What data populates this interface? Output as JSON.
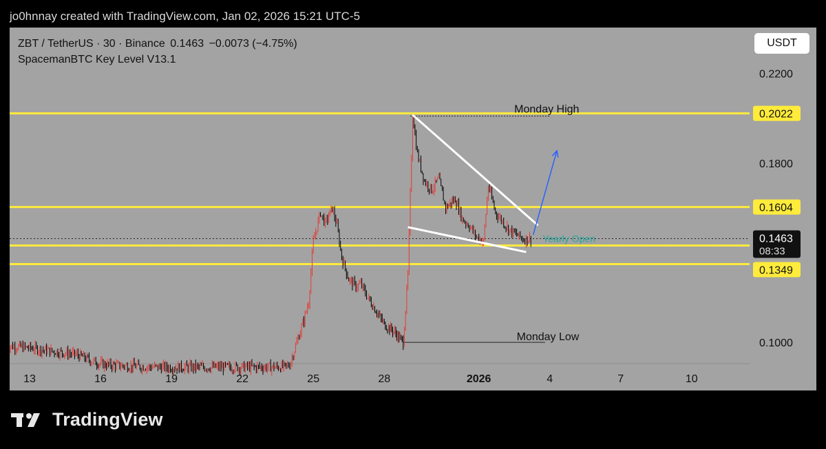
{
  "watermark": {
    "text": "jo0hnnay created with TradingView.com, Jan 02, 2026 15:21 UTC-5"
  },
  "header": {
    "symbol": "ZBT / TetherUS · 30 · Binance",
    "price": "0.1463",
    "change": "−0.0073 (−4.75%)",
    "indicator": "SpacemanBTC Key Level V13.1"
  },
  "currency_button": "USDT",
  "brand": {
    "name": "TradingView",
    "icon": "tradingview-logo-icon"
  },
  "colors": {
    "background": "#a3a3a3",
    "key_level": "#ffeb3b",
    "candle_down": "#000000",
    "candle_up": "#e53935",
    "arrow": "#2962ff",
    "trend_line": "#ffffff",
    "yearly_open_text": "#26a69a"
  },
  "chart_data": {
    "type": "candlestick",
    "ylim": [
      0.0905,
      0.2405
    ],
    "y_ticks": [
      0.22,
      0.18,
      0.1
    ],
    "x_ticks": [
      {
        "label": "13",
        "day": 13
      },
      {
        "label": "16",
        "day": 16
      },
      {
        "label": "19",
        "day": 19
      },
      {
        "label": "22",
        "day": 22
      },
      {
        "label": "25",
        "day": 25
      },
      {
        "label": "28",
        "day": 28
      },
      {
        "label": "2026",
        "day": 32,
        "bold": true
      },
      {
        "label": "4",
        "day": 35
      },
      {
        "label": "7",
        "day": 38
      },
      {
        "label": "10",
        "day": 41
      }
    ],
    "key_levels": [
      {
        "value": 0.2022,
        "label": "0.2022"
      },
      {
        "value": 0.1604,
        "label": "0.1604"
      },
      {
        "value": 0.1432,
        "label": "0.1432"
      },
      {
        "value": 0.1349,
        "label": "0.1349"
      }
    ],
    "last_price": {
      "value": 0.1463,
      "label": "0.1463",
      "countdown": "08:33"
    },
    "annotations": [
      {
        "text": "Monday High",
        "value": 0.2022
      },
      {
        "text": "Monday Low",
        "value": 0.1
      },
      {
        "text": "Yearly Open",
        "value": 0.1463
      }
    ],
    "price_path": [
      [
        12.0,
        0.0985
      ],
      [
        13.0,
        0.0975
      ],
      [
        14.0,
        0.096
      ],
      [
        15.0,
        0.0945
      ],
      [
        15.8,
        0.091
      ],
      [
        16.2,
        0.09
      ],
      [
        17.0,
        0.0895
      ],
      [
        18.0,
        0.089
      ],
      [
        19.0,
        0.0888
      ],
      [
        23.8,
        0.089
      ],
      [
        24.0,
        0.09
      ],
      [
        24.3,
        0.1
      ],
      [
        24.6,
        0.11
      ],
      [
        24.8,
        0.118
      ],
      [
        25.0,
        0.145
      ],
      [
        25.3,
        0.158
      ],
      [
        25.5,
        0.153
      ],
      [
        25.8,
        0.16
      ],
      [
        26.0,
        0.152
      ],
      [
        26.2,
        0.138
      ],
      [
        26.5,
        0.128
      ],
      [
        26.8,
        0.125
      ],
      [
        27.0,
        0.126
      ],
      [
        27.3,
        0.12
      ],
      [
        27.6,
        0.115
      ],
      [
        28.0,
        0.108
      ],
      [
        28.4,
        0.105
      ],
      [
        28.8,
        0.1
      ],
      [
        29.0,
        0.13
      ],
      [
        29.2,
        0.2015
      ],
      [
        29.4,
        0.184
      ],
      [
        29.7,
        0.172
      ],
      [
        30.0,
        0.168
      ],
      [
        30.3,
        0.173
      ],
      [
        30.6,
        0.16
      ],
      [
        31.0,
        0.164
      ],
      [
        31.3,
        0.155
      ],
      [
        31.6,
        0.152
      ],
      [
        31.9,
        0.147
      ],
      [
        32.2,
        0.145
      ],
      [
        32.4,
        0.17
      ],
      [
        32.7,
        0.158
      ],
      [
        33.0,
        0.154
      ],
      [
        33.3,
        0.15
      ],
      [
        33.6,
        0.148
      ],
      [
        33.9,
        0.146
      ],
      [
        34.2,
        0.1463
      ]
    ],
    "trend_lines": [
      {
        "from": [
          29.2,
          0.2015
        ],
        "to": [
          34.5,
          0.1522
        ]
      },
      {
        "from": [
          29.0,
          0.1514
        ],
        "to": [
          34.0,
          0.1403
        ]
      }
    ],
    "projection_arrow": {
      "from": [
        34.3,
        0.148
      ],
      "to": [
        35.3,
        0.1855
      ]
    }
  }
}
